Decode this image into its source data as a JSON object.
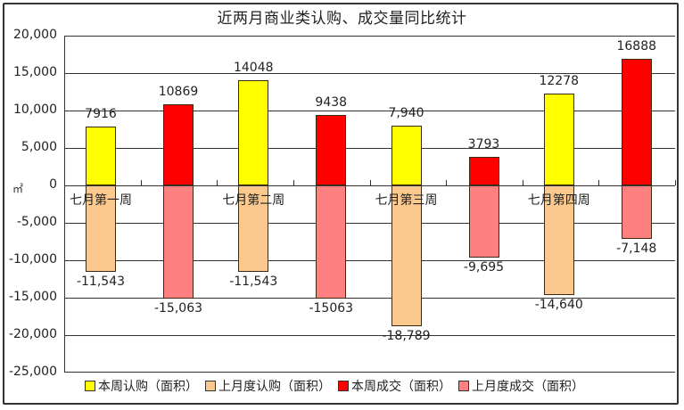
{
  "chart_data": {
    "type": "bar",
    "title": "近两月商业类认购、成交量同比统计",
    "xlabel": "",
    "ylabel": "",
    "ylim": [
      -25000,
      20000
    ],
    "yticks": [
      20000,
      15000,
      10000,
      5000,
      0,
      -5000,
      -10000,
      -15000,
      -20000,
      -25000
    ],
    "ytick_labels": [
      "20,000",
      "15,000",
      "10,000",
      "5,000",
      "0",
      "-5,000",
      "-10,000",
      "-15,000",
      "-20,000",
      "-25,000"
    ],
    "grid": true,
    "legend_position": "bottom",
    "categories": [
      "七月第一周",
      "七月第二周",
      "七月第三周",
      "七月第四周"
    ],
    "series": [
      {
        "name": "本周认购（面积）",
        "color": "#ffff00",
        "values": [
          7916,
          14048,
          7940,
          12278
        ],
        "labels": [
          "7916",
          "14048",
          "7,940",
          "12278"
        ]
      },
      {
        "name": "上月度认购（面积）",
        "color": "#fbc88e",
        "values": [
          -11543,
          -11543,
          -18789,
          -14640
        ],
        "labels": [
          "-11,543",
          "-11,543",
          "-18,789",
          "-14,640"
        ]
      },
      {
        "name": "本周成交（面积）",
        "color": "#ff0000",
        "values": [
          10869,
          9438,
          3793,
          16888
        ],
        "labels": [
          "10869",
          "9438",
          "3793",
          "16888"
        ]
      },
      {
        "name": "上月度成交（面积）",
        "color": "#ff8080",
        "values": [
          -15063,
          -15063,
          -9695,
          -7148
        ],
        "labels": [
          "-15,063",
          "-15063",
          "-9,695",
          "-7,148"
        ]
      }
    ]
  },
  "legend": {
    "items": [
      {
        "label": "本周认购（面积）",
        "color": "#ffff00"
      },
      {
        "label": "上月度认购（面积）",
        "color": "#fbc88e"
      },
      {
        "label": "本周成交（面积）",
        "color": "#ff0000"
      },
      {
        "label": "上月度成交（面积）",
        "color": "#ff8080"
      }
    ]
  },
  "unit_icon": "㎡"
}
